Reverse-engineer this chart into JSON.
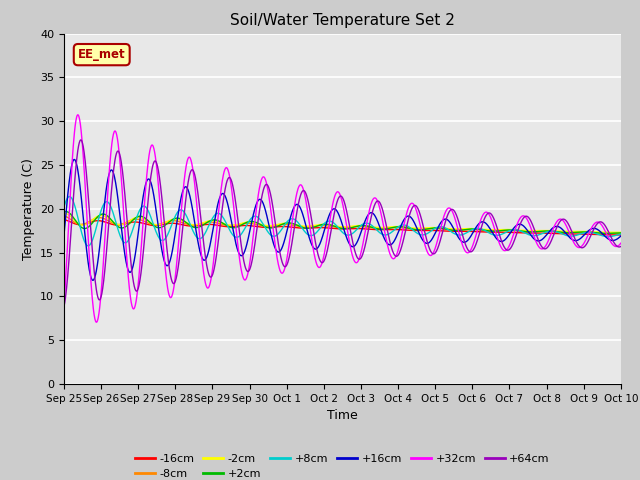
{
  "title": "Soil/Water Temperature Set 2",
  "xlabel": "Time",
  "ylabel": "Temperature (C)",
  "ylim": [
    0,
    40
  ],
  "yticks": [
    0,
    5,
    10,
    15,
    20,
    25,
    30,
    35,
    40
  ],
  "date_labels": [
    "Sep 25",
    "Sep 26",
    "Sep 27",
    "Sep 28",
    "Sep 29",
    "Sep 30",
    "Oct 1",
    "Oct 2",
    "Oct 3",
    "Oct 4",
    "Oct 5",
    "Oct 6",
    "Oct 7",
    "Oct 8",
    "Oct 9",
    "Oct 10"
  ],
  "series_labels": [
    "-16cm",
    "-8cm",
    "-2cm",
    "+2cm",
    "+8cm",
    "+16cm",
    "+32cm",
    "+64cm"
  ],
  "series_colors": [
    "#ff0000",
    "#ff8800",
    "#ffff00",
    "#00bb00",
    "#00cccc",
    "#0000cc",
    "#ff00ff",
    "#9900bb"
  ],
  "annotation_text": "EE_met",
  "annotation_bg": "#ffffaa",
  "annotation_border": "#aa0000",
  "fig_bg": "#cccccc",
  "plot_bg": "#e8e8e8",
  "grid_color": "#ffffff"
}
